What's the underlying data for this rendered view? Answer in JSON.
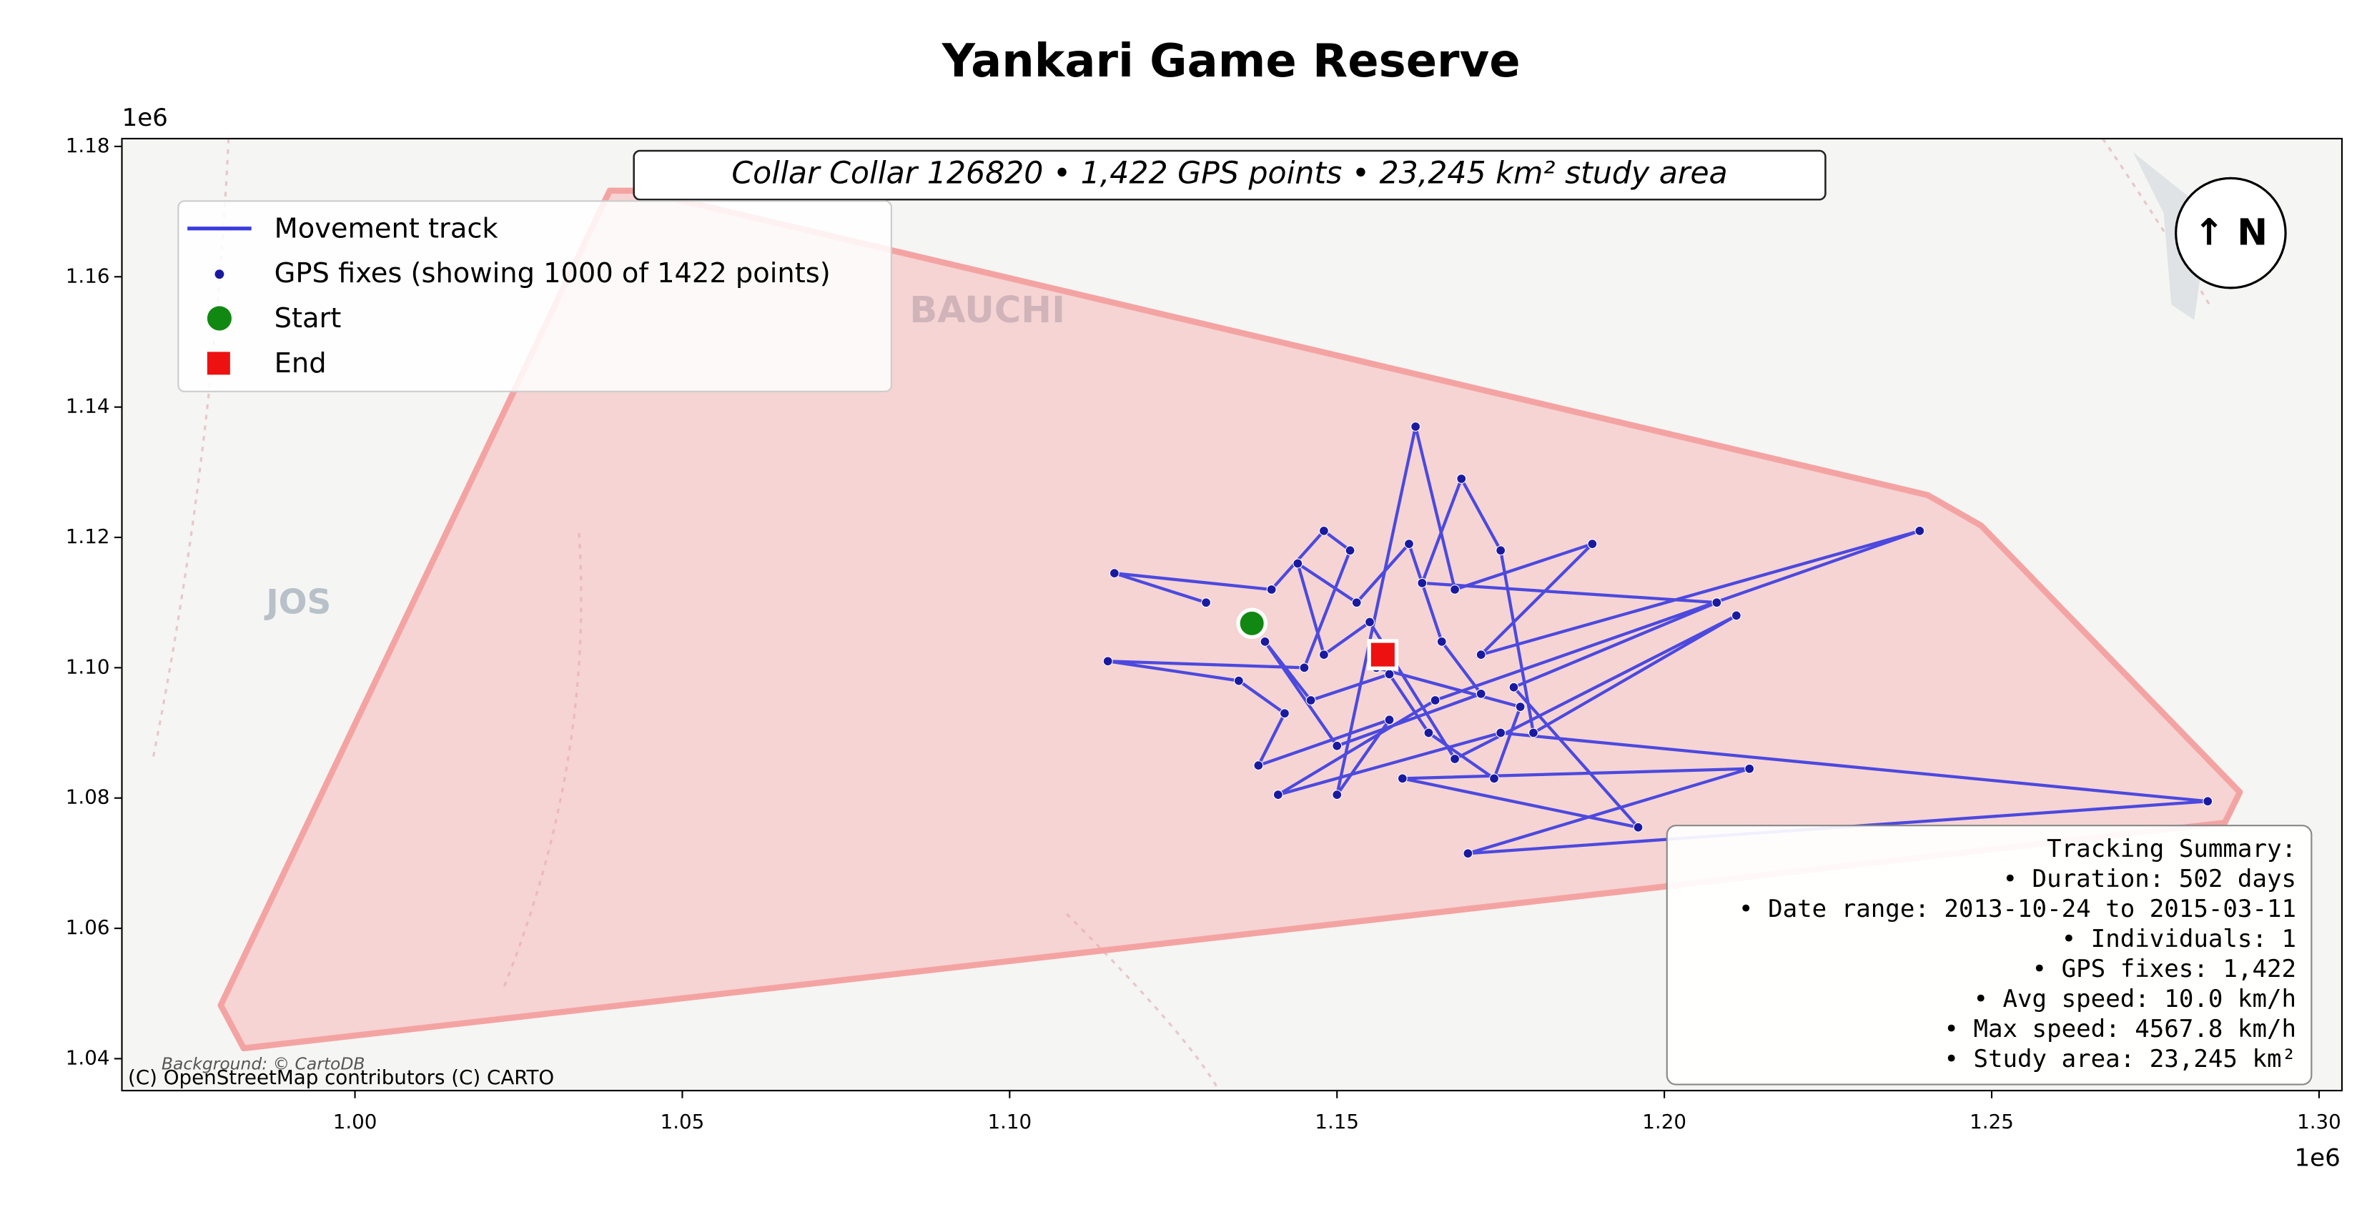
{
  "chart_data": {
    "type": "track",
    "title": "Yankari Game Reserve",
    "annotation": "Collar Collar 126820 • 1,422 GPS points • 23,245 km² study area",
    "x_offset_label": "1e6",
    "y_offset_label": "1e6",
    "xlim": [
      964400,
      1303500
    ],
    "ylim": [
      1035100,
      1181200
    ],
    "xticks": [
      {
        "value": 1000000,
        "label": "1.00"
      },
      {
        "value": 1050000,
        "label": "1.05"
      },
      {
        "value": 1100000,
        "label": "1.10"
      },
      {
        "value": 1150000,
        "label": "1.15"
      },
      {
        "value": 1200000,
        "label": "1.20"
      },
      {
        "value": 1250000,
        "label": "1.25"
      },
      {
        "value": 1300000,
        "label": "1.30"
      }
    ],
    "yticks": [
      {
        "value": 1040000,
        "label": "1.04"
      },
      {
        "value": 1060000,
        "label": "1.06"
      },
      {
        "value": 1080000,
        "label": "1.08"
      },
      {
        "value": 1100000,
        "label": "1.10"
      },
      {
        "value": 1120000,
        "label": "1.12"
      },
      {
        "value": 1140000,
        "label": "1.14"
      },
      {
        "value": 1160000,
        "label": "1.16"
      },
      {
        "value": 1180000,
        "label": "1.18"
      }
    ],
    "study_area": {
      "color": "#f4a3a3",
      "x": [
        979500,
        983000,
        1285600,
        1287900,
        1248400,
        1240200,
        1043500,
        1038900
      ],
      "y": [
        1048200,
        1041600,
        1076200,
        1080900,
        1121800,
        1126500,
        1173200,
        1173200
      ]
    },
    "track": {
      "line_name": "Movement track",
      "line_color": "#3a3ae0",
      "points_name": "GPS fixes (showing 1000 of 1422 points)",
      "point_color": "#1a1aa0",
      "x": [
        1130000,
        1116000,
        1140000,
        1148000,
        1152000,
        1145000,
        1115000,
        1135000,
        1142000,
        1138000,
        1158000,
        1150000,
        1162000,
        1168000,
        1189000,
        1172000,
        1239000,
        1165000,
        1141000,
        1175000,
        1283000,
        1170000,
        1213000,
        1160000,
        1196000,
        1177000,
        1208000,
        1163000,
        1169000,
        1175000,
        1180000,
        1211000,
        1168000,
        1155000,
        1148000,
        1144000,
        1153000,
        1161000,
        1166000,
        1172000,
        1150000,
        1139000,
        1146000,
        1158000,
        1164000,
        1174000,
        1178000,
        1156000
      ],
      "y": [
        1110000,
        1114500,
        1112000,
        1121000,
        1118000,
        1100000,
        1101000,
        1098000,
        1093000,
        1085000,
        1092000,
        1080500,
        1137000,
        1112000,
        1119000,
        1102000,
        1121000,
        1095000,
        1080500,
        1090000,
        1079500,
        1071500,
        1084500,
        1083000,
        1075500,
        1097000,
        1110000,
        1113000,
        1129000,
        1118000,
        1090000,
        1108000,
        1086000,
        1107000,
        1102000,
        1116000,
        1110000,
        1119000,
        1104000,
        1096000,
        1088000,
        1104000,
        1095000,
        1099000,
        1090000,
        1083000,
        1094000,
        1100000
      ]
    },
    "start": {
      "name": "Start",
      "color": "#118811",
      "x": 1137000,
      "y": 1106800
    },
    "end": {
      "name": "End",
      "color": "#ee1111",
      "x": 1157000,
      "y": 1102000
    },
    "map_labels": [
      "BAUCHI",
      "JOS"
    ],
    "north_label": "↑ N",
    "summary": [
      "Tracking Summary:",
      "• Duration: 502 days",
      "• Date range: 2013-10-24 to 2015-03-11",
      "• Individuals: 1",
      "• GPS fixes: 1,422",
      "• Avg speed: 10.0 km/h",
      "• Max speed: 4567.8 km/h",
      "• Study area: 23,245 km²"
    ],
    "attribution": [
      "Background: © CartoDB",
      "(C) OpenStreetMap contributors (C) CARTO"
    ]
  }
}
